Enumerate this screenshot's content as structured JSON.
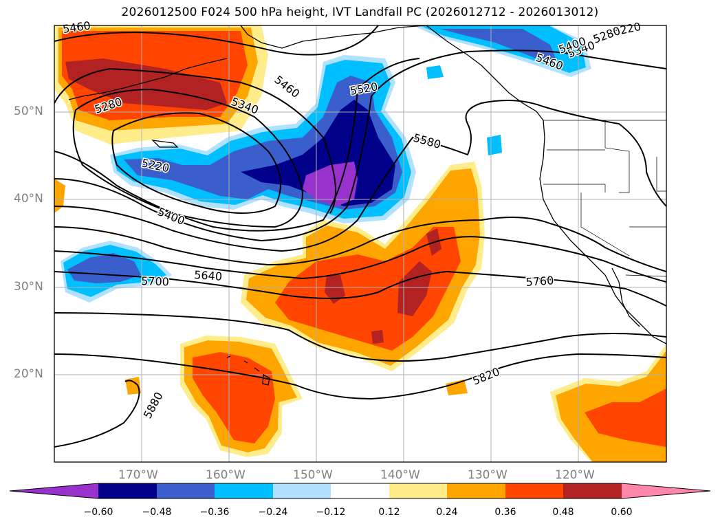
{
  "title": "2026012500 F024 500 hPa height, IVT Landfall PC (2026012712 - 2026013012)",
  "map": {
    "lat_labels": [
      "50°N",
      "40°N",
      "30°N",
      "20°N"
    ],
    "lon_labels": [
      "170°W",
      "160°W",
      "150°W",
      "140°W",
      "130°W",
      "120°W"
    ],
    "height_contour_labels": [
      "5460",
      "5280",
      "5340",
      "5460",
      "5520",
      "5220",
      "5280",
      "5340",
      "5400",
      "5460",
      "5220",
      "5580",
      "5400",
      "5640",
      "5700",
      "5760",
      "5820",
      "5880"
    ],
    "colors": {
      "land_outline": "#000000",
      "grid": "#b0b0b0",
      "contour": "#000000"
    }
  },
  "colorbar": {
    "labels": [
      "−0.60",
      "−0.48",
      "−0.36",
      "−0.24",
      "−0.12",
      "0.12",
      "0.24",
      "0.36",
      "0.48",
      "0.60"
    ],
    "colors": [
      "#9932cc",
      "#00008b",
      "#3a5fcd",
      "#00bfff",
      "#b0e2ff",
      "#ffffff",
      "#ffec8b",
      "#ffa500",
      "#ff4500",
      "#b22222",
      "#ff88aa"
    ]
  }
}
